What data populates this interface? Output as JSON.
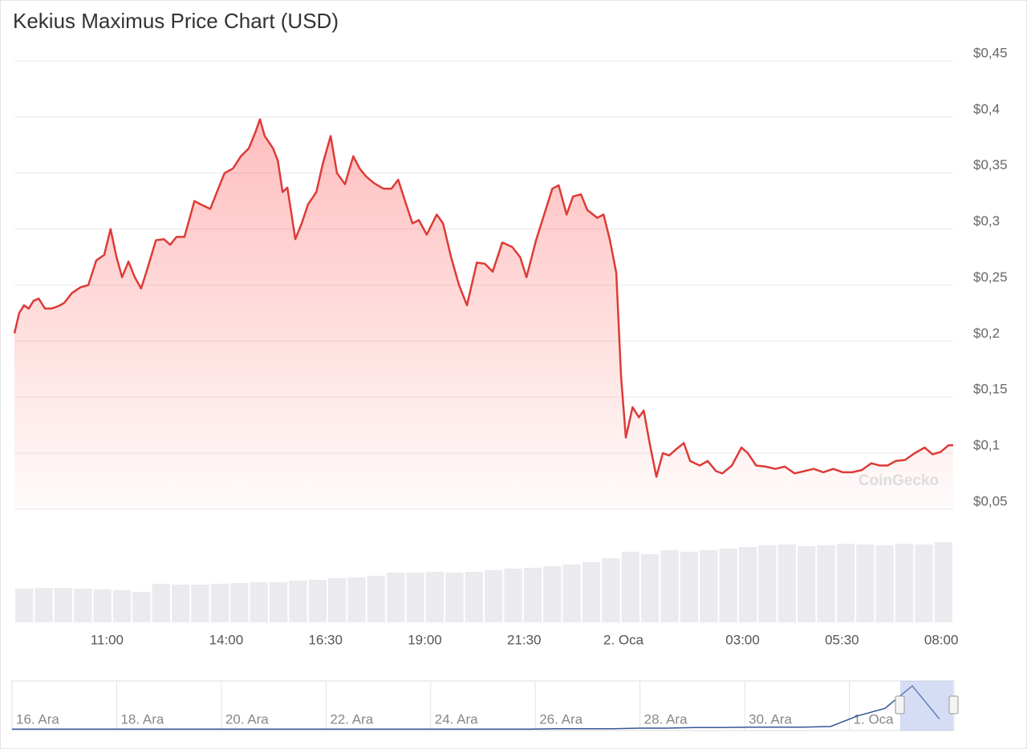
{
  "chart_data": {
    "type": "area",
    "title": "Kekius Maximus Price Chart (USD)",
    "watermark": "CoinGecko",
    "color": "#dd3b37",
    "grid": true,
    "xlim": [
      8.67,
      32.3
    ],
    "ylim": [
      0.05,
      0.45
    ],
    "yticks": [
      {
        "value": 0.05,
        "label": "$0,05"
      },
      {
        "value": 0.1,
        "label": "$0,1"
      },
      {
        "value": 0.15,
        "label": "$0,15"
      },
      {
        "value": 0.2,
        "label": "$0,2"
      },
      {
        "value": 0.25,
        "label": "$0,25"
      },
      {
        "value": 0.3,
        "label": "$0,3"
      },
      {
        "value": 0.35,
        "label": "$0,35"
      },
      {
        "value": 0.4,
        "label": "$0,4"
      },
      {
        "value": 0.45,
        "label": "$0,45"
      }
    ],
    "xticks": [
      {
        "value": 11,
        "label": "11:00"
      },
      {
        "value": 14,
        "label": "14:00"
      },
      {
        "value": 16.5,
        "label": "16:30"
      },
      {
        "value": 19,
        "label": "19:00"
      },
      {
        "value": 21.5,
        "label": "21:30"
      },
      {
        "value": 24,
        "label": "2. Oca"
      },
      {
        "value": 27,
        "label": "03:00"
      },
      {
        "value": 29.5,
        "label": "05:30"
      },
      {
        "value": 32,
        "label": "08:00"
      }
    ],
    "x": [
      8.67,
      8.79,
      8.91,
      9.03,
      9.15,
      9.28,
      9.44,
      9.6,
      9.76,
      9.92,
      10.12,
      10.33,
      10.53,
      10.73,
      10.93,
      11.09,
      11.24,
      11.38,
      11.54,
      11.7,
      11.86,
      12.02,
      12.23,
      12.43,
      12.59,
      12.75,
      12.95,
      13.2,
      13.36,
      13.6,
      13.8,
      13.96,
      14.17,
      14.37,
      14.57,
      14.73,
      14.85,
      14.97,
      15.18,
      15.3,
      15.42,
      15.54,
      15.74,
      15.9,
      16.06,
      16.27,
      16.43,
      16.63,
      16.79,
      16.99,
      17.2,
      17.36,
      17.52,
      17.72,
      17.96,
      18.16,
      18.33,
      18.53,
      18.69,
      18.85,
      19.05,
      19.3,
      19.46,
      19.66,
      19.86,
      20.06,
      20.31,
      20.51,
      20.71,
      20.95,
      21.2,
      21.4,
      21.56,
      21.8,
      22.04,
      22.21,
      22.37,
      22.57,
      22.73,
      22.93,
      23.09,
      23.34,
      23.5,
      23.66,
      23.82,
      23.94,
      24.06,
      24.23,
      24.39,
      24.51,
      24.67,
      24.83,
      24.99,
      25.15,
      25.31,
      25.52,
      25.68,
      25.92,
      26.12,
      26.33,
      26.49,
      26.73,
      26.97,
      27.13,
      27.34,
      27.58,
      27.82,
      28.06,
      28.31,
      28.55,
      28.79,
      29.03,
      29.28,
      29.52,
      29.76,
      30.0,
      30.24,
      30.45,
      30.65,
      30.85,
      31.09,
      31.33,
      31.58,
      31.78,
      31.98,
      32.18,
      32.3
    ],
    "values": [
      0.207,
      0.225,
      0.232,
      0.229,
      0.236,
      0.238,
      0.229,
      0.229,
      0.231,
      0.234,
      0.243,
      0.248,
      0.25,
      0.272,
      0.277,
      0.3,
      0.275,
      0.257,
      0.271,
      0.257,
      0.247,
      0.265,
      0.29,
      0.291,
      0.286,
      0.293,
      0.293,
      0.325,
      0.322,
      0.318,
      0.336,
      0.35,
      0.354,
      0.365,
      0.372,
      0.386,
      0.398,
      0.383,
      0.372,
      0.361,
      0.333,
      0.337,
      0.291,
      0.305,
      0.322,
      0.333,
      0.358,
      0.383,
      0.35,
      0.34,
      0.365,
      0.354,
      0.347,
      0.341,
      0.336,
      0.336,
      0.344,
      0.322,
      0.305,
      0.308,
      0.295,
      0.313,
      0.305,
      0.275,
      0.25,
      0.232,
      0.27,
      0.269,
      0.262,
      0.288,
      0.284,
      0.275,
      0.257,
      0.29,
      0.317,
      0.336,
      0.339,
      0.313,
      0.329,
      0.331,
      0.317,
      0.31,
      0.313,
      0.29,
      0.261,
      0.168,
      0.114,
      0.141,
      0.132,
      0.138,
      0.107,
      0.079,
      0.1,
      0.098,
      0.103,
      0.109,
      0.093,
      0.089,
      0.093,
      0.084,
      0.082,
      0.089,
      0.105,
      0.1,
      0.089,
      0.088,
      0.086,
      0.088,
      0.082,
      0.084,
      0.086,
      0.083,
      0.086,
      0.083,
      0.083,
      0.085,
      0.091,
      0.089,
      0.089,
      0.093,
      0.094,
      0.1,
      0.105,
      0.099,
      0.101,
      0.107,
      0.107
    ],
    "volume": {
      "ylim": [
        0,
        108
      ],
      "values": [
        42,
        43,
        43,
        42,
        41,
        40,
        38,
        48,
        47,
        47,
        48,
        49,
        50,
        50,
        52,
        53,
        55,
        56,
        58,
        62,
        62,
        63,
        62,
        63,
        65,
        67,
        68,
        70,
        72,
        75,
        80,
        88,
        85,
        90,
        88,
        90,
        92,
        94,
        96,
        97,
        95,
        96,
        98,
        97,
        96,
        98,
        97,
        100
      ]
    },
    "navigator": {
      "ylim": [
        0,
        0.45
      ],
      "labels": [
        "16. Ara",
        "18. Ara",
        "20. Ara",
        "22. Ara",
        "24. Ara",
        "26. Ara",
        "28. Ara",
        "30. Ara",
        "1. Oca"
      ],
      "values": [
        0.005,
        0.005,
        0.005,
        0.005,
        0.005,
        0.005,
        0.005,
        0.005,
        0.005,
        0.005,
        0.005,
        0.005,
        0.005,
        0.005,
        0.005,
        0.005,
        0.005,
        0.005,
        0.005,
        0.005,
        0.01,
        0.01,
        0.01,
        0.015,
        0.015,
        0.02,
        0.02,
        0.025,
        0.025,
        0.025,
        0.03,
        0.13,
        0.2,
        0.41,
        0.1
      ]
    }
  }
}
